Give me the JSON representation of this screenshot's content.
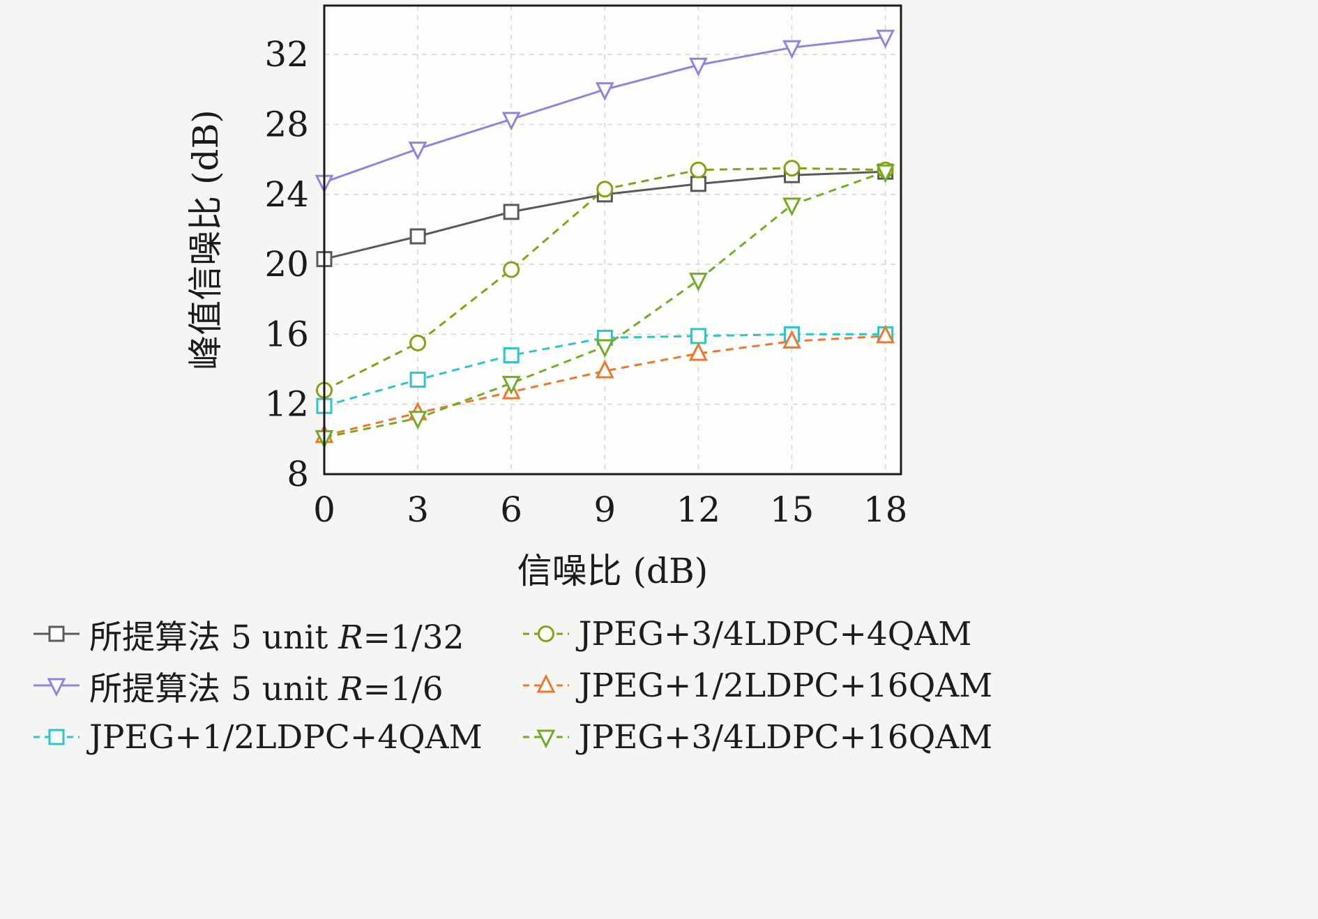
{
  "chart_data": {
    "type": "line",
    "title": "",
    "xlabel": "信噪比 (dB)",
    "ylabel": "峰值信噪比 (dB)",
    "x": [
      0,
      3,
      6,
      9,
      12,
      15,
      18
    ],
    "x_ticks": [
      0,
      3,
      6,
      9,
      12,
      15,
      18
    ],
    "y_ticks": [
      8,
      12,
      16,
      20,
      24,
      28,
      32
    ],
    "xlim": [
      0,
      18.5
    ],
    "ylim": [
      8,
      34.8
    ],
    "grid": true,
    "grid_style": "dashed",
    "legend_position": "bottom",
    "series": [
      {
        "name": "所提算法 5 unit R=1/32",
        "marker": "square",
        "line": "solid",
        "color": "#58595b",
        "values": [
          20.3,
          21.6,
          23.0,
          24.0,
          24.6,
          25.1,
          25.3
        ]
      },
      {
        "name": "所提算法 5 unit R=1/6",
        "marker": "triangle-down",
        "line": "solid",
        "color": "#9582de",
        "values": [
          24.7,
          26.6,
          28.3,
          30.0,
          31.4,
          32.4,
          33.0
        ]
      },
      {
        "name": "JPEG+1/2LDPC+4QAM",
        "marker": "square",
        "line": "dashed",
        "color": "#2cc5c8",
        "values": [
          11.9,
          13.4,
          14.8,
          15.8,
          15.9,
          16.0,
          16.0
        ]
      },
      {
        "name": "JPEG+3/4LDPC+4QAM",
        "marker": "circle",
        "line": "dashed",
        "color": "#8d9d14",
        "values": [
          12.8,
          15.5,
          19.7,
          24.3,
          25.4,
          25.5,
          25.4
        ]
      },
      {
        "name": "JPEG+1/2LDPC+16QAM",
        "marker": "triangle-up",
        "line": "dashed",
        "color": "#f0762b",
        "values": [
          10.2,
          11.5,
          12.7,
          13.9,
          14.9,
          15.6,
          15.9
        ]
      },
      {
        "name": "JPEG+3/4LDPC+16QAM",
        "marker": "triangle-down",
        "line": "dashed",
        "color": "#71ad24",
        "values": [
          10.1,
          11.2,
          13.2,
          15.3,
          19.1,
          23.4,
          25.3
        ]
      }
    ]
  },
  "legend": {
    "column_order": [
      [
        0,
        1,
        2
      ],
      [
        3,
        4,
        5
      ]
    ]
  },
  "colors": {
    "axis": "#1b1b1b",
    "grid": "#d7d7d5",
    "plot_background": "#fdfdfc",
    "page_background": "#f5f5f4",
    "text": "#1c1c1c"
  }
}
